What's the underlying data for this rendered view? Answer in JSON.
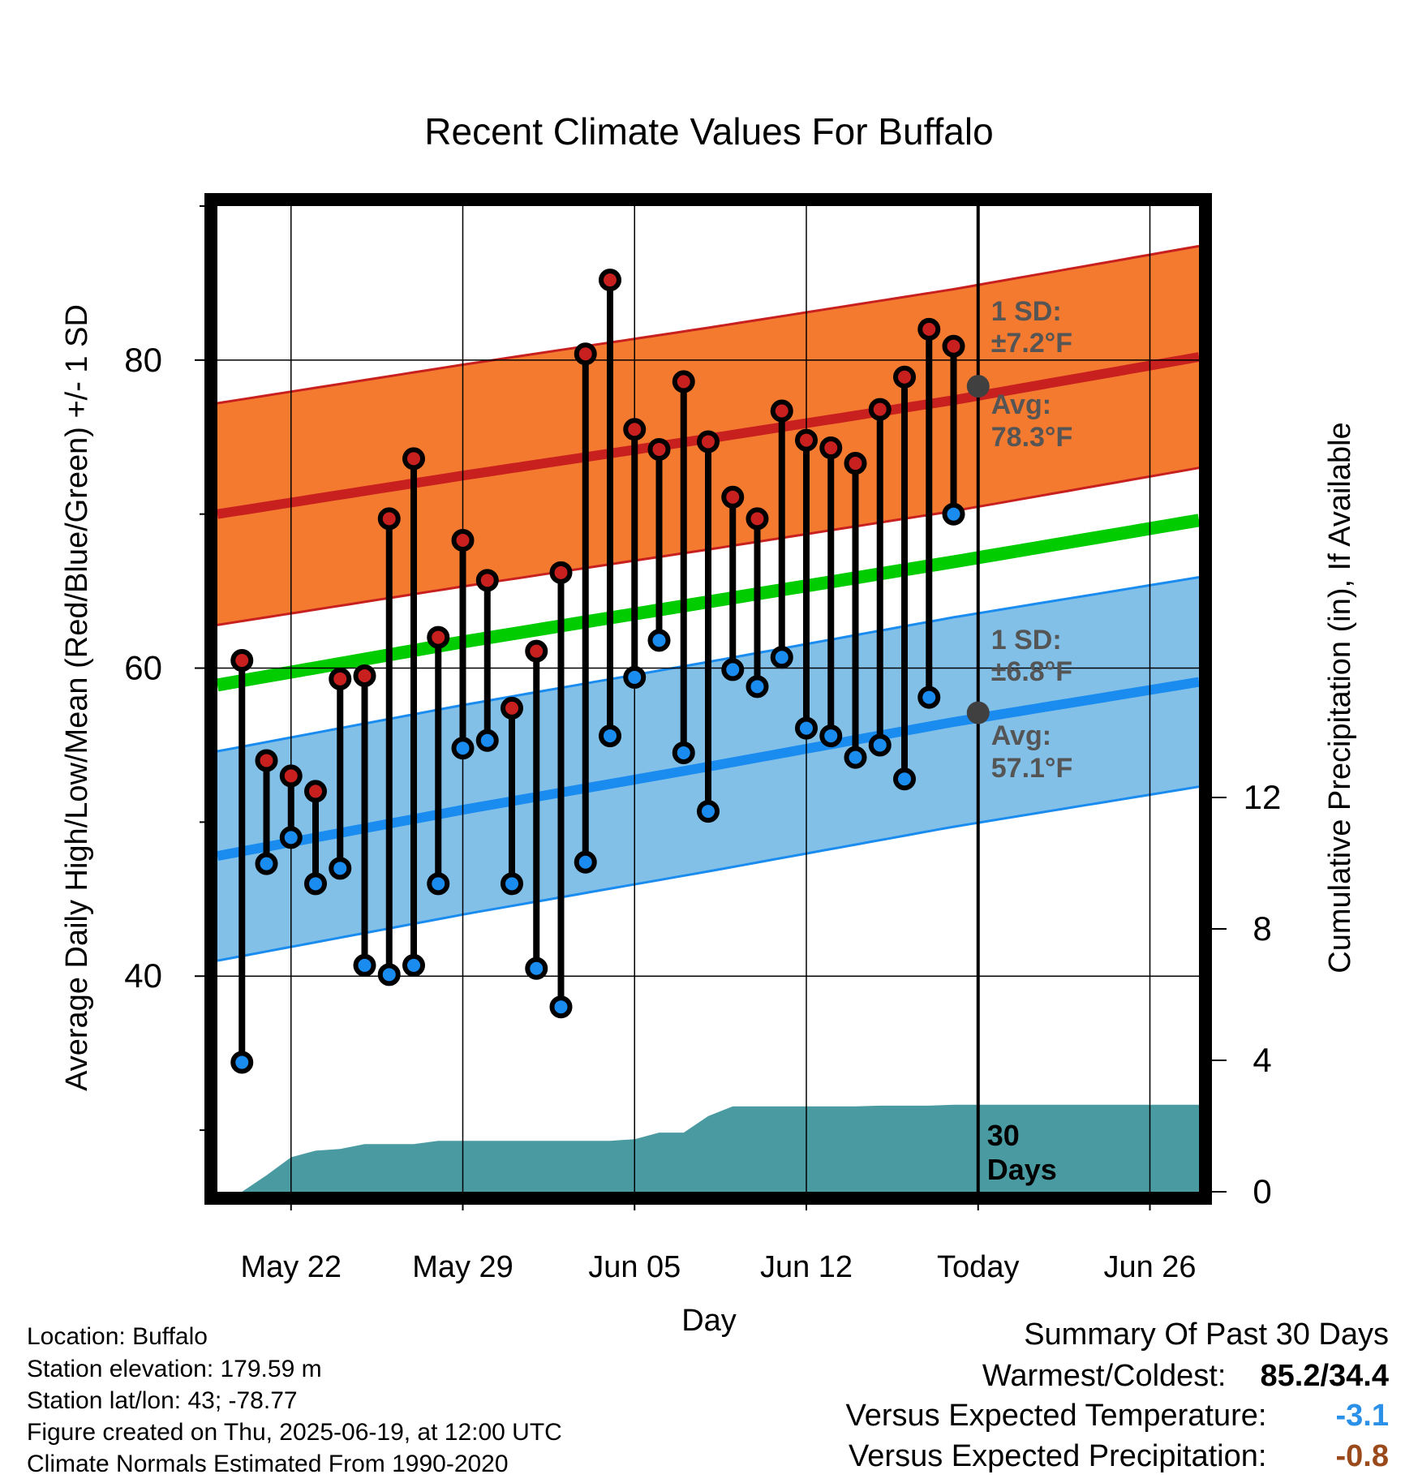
{
  "chart_data": {
    "type": "line",
    "title": "Recent Climate Values For Buffalo",
    "xlabel": "Day",
    "ylabel": "Average Daily High/Low/Mean (Red/Blue/Green) +/- 1 SD",
    "y2label": "Cumulative Precipitation (in), If Available",
    "xticks": [
      "May 22",
      "May 29",
      "Jun 05",
      "Jun 12",
      "Today",
      "Jun 26"
    ],
    "xtick_dates": [
      "2025-05-22",
      "2025-05-29",
      "2025-06-05",
      "2025-06-12",
      "2025-06-19",
      "2025-06-26"
    ],
    "xlim": [
      "2025-05-19",
      "2025-06-28"
    ],
    "today": "2025-06-19",
    "ylim": [
      26,
      90
    ],
    "yticks": [
      40,
      60,
      80
    ],
    "y2lim": [
      0,
      30
    ],
    "y2ticks": [
      0,
      4,
      8,
      12
    ],
    "grid": true,
    "daily": {
      "dates": [
        "2025-05-20",
        "2025-05-21",
        "2025-05-22",
        "2025-05-23",
        "2025-05-24",
        "2025-05-25",
        "2025-05-26",
        "2025-05-27",
        "2025-05-28",
        "2025-05-29",
        "2025-05-30",
        "2025-05-31",
        "2025-06-01",
        "2025-06-02",
        "2025-06-03",
        "2025-06-04",
        "2025-06-05",
        "2025-06-06",
        "2025-06-07",
        "2025-06-08",
        "2025-06-09",
        "2025-06-10",
        "2025-06-11",
        "2025-06-12",
        "2025-06-13",
        "2025-06-14",
        "2025-06-15",
        "2025-06-16",
        "2025-06-17",
        "2025-06-18"
      ],
      "high": [
        60.5,
        54.0,
        53.0,
        52.0,
        59.3,
        59.5,
        69.7,
        73.6,
        62.0,
        68.3,
        65.7,
        57.4,
        61.1,
        66.2,
        80.4,
        85.2,
        75.5,
        74.2,
        78.6,
        74.7,
        71.1,
        69.7,
        76.7,
        74.8,
        74.3,
        73.3,
        76.8,
        78.9,
        82.0,
        80.9
      ],
      "low": [
        34.4,
        47.3,
        49.0,
        46.0,
        47.0,
        40.7,
        40.1,
        40.7,
        46.0,
        54.8,
        55.3,
        46.0,
        40.5,
        38.0,
        47.4,
        55.6,
        59.4,
        61.8,
        54.5,
        50.7,
        59.9,
        58.8,
        60.7,
        56.1,
        55.6,
        54.2,
        55.0,
        52.8,
        58.1,
        70.0
      ]
    },
    "normals": {
      "dates": [
        "2025-05-19",
        "2025-05-29",
        "2025-06-08",
        "2025-06-18",
        "2025-06-28"
      ],
      "high_avg": [
        70.0,
        72.5,
        74.9,
        77.4,
        80.2
      ],
      "high_sd": 7.2,
      "low_avg": [
        47.8,
        50.8,
        53.6,
        56.5,
        59.1
      ],
      "low_sd": 6.8,
      "mean_avg": [
        58.9,
        61.7,
        64.3,
        66.9,
        69.6
      ]
    },
    "precip_cumulative": {
      "dates": [
        "2025-05-19",
        "2025-05-20",
        "2025-05-21",
        "2025-05-22",
        "2025-05-23",
        "2025-05-24",
        "2025-05-25",
        "2025-05-26",
        "2025-05-27",
        "2025-05-28",
        "2025-05-29",
        "2025-05-30",
        "2025-05-31",
        "2025-06-01",
        "2025-06-02",
        "2025-06-03",
        "2025-06-04",
        "2025-06-05",
        "2025-06-06",
        "2025-06-07",
        "2025-06-08",
        "2025-06-09",
        "2025-06-10",
        "2025-06-11",
        "2025-06-12",
        "2025-06-13",
        "2025-06-14",
        "2025-06-15",
        "2025-06-16",
        "2025-06-17",
        "2025-06-18",
        "2025-06-19",
        "2025-06-28"
      ],
      "values": [
        0.0,
        0.0,
        0.5,
        1.05,
        1.25,
        1.3,
        1.45,
        1.45,
        1.45,
        1.55,
        1.55,
        1.55,
        1.55,
        1.55,
        1.55,
        1.55,
        1.55,
        1.6,
        1.8,
        1.8,
        2.3,
        2.6,
        2.6,
        2.6,
        2.6,
        2.6,
        2.6,
        2.62,
        2.62,
        2.62,
        2.65,
        2.65,
        2.65
      ]
    },
    "annotations": {
      "high_sd_title": "1 SD:",
      "high_sd_value": "±7.2°F",
      "high_avg_title": "Avg:",
      "high_avg_value": "78.3°F",
      "high_avg_point": 78.3,
      "low_sd_title": "1 SD:",
      "low_sd_value": "±6.8°F",
      "low_avg_title": "Avg:",
      "low_avg_value": "57.1°F",
      "low_avg_point": 57.1,
      "days_count": "30",
      "days_word": "Days"
    },
    "colors": {
      "high_band": "#f47a30",
      "high_line": "#c8201f",
      "low_band": "#82c0e8",
      "low_line": "#1a8cf0",
      "mean_line": "#00cc00",
      "precip_fill": "#4a9aa2",
      "high_dot": "#c8201f",
      "low_dot": "#1a8cf0",
      "avg_marker": "#404040",
      "annotation_text": "#555555"
    }
  },
  "info": {
    "location": "Location: Buffalo",
    "elevation": "Station elevation: 179.59 m",
    "latlon": "Station lat/lon: 43; -78.77",
    "created": "Figure created on Thu, 2025-06-19, at 12:00 UTC",
    "normals": "Climate Normals Estimated From 1990-2020"
  },
  "summary": {
    "title": "Summary Of Past 30 Days",
    "warmest_label": "Warmest/Coldest:",
    "warmest_value": "85.2/34.4",
    "temp_label": "Versus Expected Temperature:",
    "temp_value": "-3.1",
    "temp_color": "#2a90e8",
    "precip_label": "Versus Expected Precipitation:",
    "precip_value": "-0.8",
    "precip_color": "#9a4a1a"
  }
}
